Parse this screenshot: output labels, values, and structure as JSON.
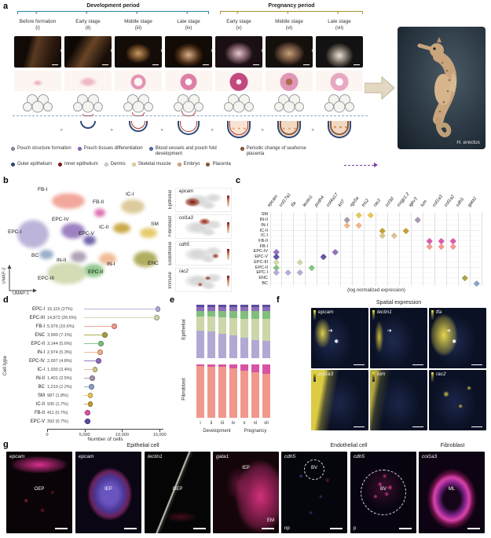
{
  "panel_labels": {
    "a": "a",
    "b": "b",
    "c": "c",
    "d": "d",
    "e": "e",
    "f": "f",
    "g": "g"
  },
  "palette": {
    "EPC-I": "#b3a8d4",
    "E PC": "#999",
    "EPC-II": "#7fbf7b",
    "EPC-III": "#ccd6a9",
    "EPC-IV": "#8d6cb8",
    "EPC-V": "#5c4b9e",
    "FB-I": "#f0988c",
    "FB-II": "#d953a4",
    "IC-I": "#d6c28a",
    "IC-II": "#c29b2d",
    "SM": "#e3c454",
    "IN-I": "#efb086",
    "IN-II": "#a393ab",
    "BC": "#86a0c2",
    "ENC": "#a3a044"
  },
  "panel_a": {
    "development_label": "Development period",
    "pregnancy_label": "Pregnancy period",
    "stages": [
      {
        "name": "Before formation",
        "numeral": "(i)"
      },
      {
        "name": "Early stage",
        "numeral": "(ii)"
      },
      {
        "name": "Middle stage",
        "numeral": "(iii)"
      },
      {
        "name": "Late stage",
        "numeral": "(iv)"
      },
      {
        "name": "Early stage",
        "numeral": "(v)"
      },
      {
        "name": "Middle stage",
        "numeral": "(vi)"
      },
      {
        "name": "Late stage",
        "numeral": "(vii)"
      }
    ],
    "process_legend": [
      {
        "label": "Pouch structure formation",
        "color": "#8a8fa8"
      },
      {
        "label": "Pouch tissues differentiation",
        "color": "#9467bd"
      },
      {
        "label": "Blood vessels and pouch fold development",
        "color": "#4c72b0"
      },
      {
        "label": "Periodic change of seahorse placenta",
        "color": "#8c5a3c"
      }
    ],
    "tissue_legend": [
      {
        "label": "Outer epithelium",
        "color": "#2e4a7a"
      },
      {
        "label": "Inner epithelium",
        "color": "#8b1a1a"
      },
      {
        "label": "Dermis",
        "color": "#d9d9d9"
      },
      {
        "label": "Skeletal muscle",
        "color": "#f0e0a0"
      },
      {
        "label": "Embryo",
        "color": "#e8a87c"
      },
      {
        "label": "Placenta",
        "color": "#8c5a3c"
      }
    ],
    "species": "H. erectus"
  },
  "panel_b": {
    "x_axis": "UMAP-1",
    "y_axis": "UMAP-2",
    "clusters": [
      {
        "name": "FB-I",
        "bx": 58,
        "by": 10,
        "bw": 42,
        "bh": 20,
        "lx": 40,
        "ly": 2
      },
      {
        "name": "FB-II",
        "bx": 112,
        "by": 30,
        "bw": 14,
        "bh": 10,
        "lx": 110,
        "ly": 18
      },
      {
        "name": "IC-I",
        "bx": 146,
        "by": 18,
        "bw": 30,
        "bh": 18,
        "lx": 152,
        "ly": 8
      },
      {
        "name": "IC-II",
        "bx": 136,
        "by": 48,
        "bw": 22,
        "bh": 13,
        "lx": 118,
        "ly": 50
      },
      {
        "name": "SM",
        "bx": 170,
        "by": 54,
        "bw": 22,
        "bh": 13,
        "lx": 184,
        "ly": 46
      },
      {
        "name": "EPC-I",
        "bx": 14,
        "by": 44,
        "bw": 40,
        "bh": 36,
        "lx": 2,
        "ly": 56
      },
      {
        "name": "EPC-IV",
        "bx": 70,
        "by": 48,
        "bw": 30,
        "bh": 20,
        "lx": 58,
        "ly": 40
      },
      {
        "name": "EPC-V",
        "bx": 98,
        "by": 64,
        "bw": 16,
        "bh": 12,
        "lx": 92,
        "ly": 58
      },
      {
        "name": "ENC",
        "bx": 162,
        "by": 84,
        "bw": 30,
        "bh": 20,
        "lx": 180,
        "ly": 96
      },
      {
        "name": "IN-I",
        "bx": 118,
        "by": 86,
        "bw": 22,
        "bh": 15,
        "lx": 128,
        "ly": 97
      },
      {
        "name": "IN-II",
        "bx": 82,
        "by": 84,
        "bw": 20,
        "bh": 14,
        "lx": 64,
        "ly": 92
      },
      {
        "name": "BC",
        "bx": 42,
        "by": 82,
        "bw": 18,
        "bh": 12,
        "lx": 32,
        "ly": 86
      },
      {
        "name": "EPC-II",
        "bx": 98,
        "by": 100,
        "bw": 26,
        "bh": 17,
        "lx": 104,
        "ly": 107
      },
      {
        "name": "EPC-III",
        "bx": 52,
        "by": 98,
        "bw": 50,
        "bh": 28,
        "lx": 40,
        "ly": 115
      }
    ],
    "feature_plots": [
      {
        "gene": "epcam",
        "category": "Epithelial"
      },
      {
        "gene": "col1a3",
        "category": "Fibroblast"
      },
      {
        "gene": "cdh5",
        "category": "Endothelial"
      },
      {
        "gene": "rac2",
        "category": "Immune"
      }
    ]
  },
  "chart_data": [
    {
      "type": "heatmap",
      "panel": "c",
      "title": "(log normalized expression)",
      "genes": [
        "epcam",
        "col17a1",
        "tfa",
        "lectin1",
        "pcdh4",
        "col4a17",
        "krt7",
        "rgs5a",
        "tnc2",
        "rac2",
        "ccl3d",
        "mrgp1.2",
        "igkv3",
        "lum",
        "col1a3",
        "col1a2",
        "cdh5",
        "gata1"
      ],
      "cell_types": [
        "SM",
        "IN-II",
        "IN-I",
        "IC-II",
        "IC-I",
        "FB-II",
        "FB-I",
        "EPC-IV",
        "EPC-V",
        "EPC-III",
        "EPC-II",
        "EPC-I",
        "ENC",
        "BC"
      ],
      "marks": [
        [
          7,
          8,
          9,
          10,
          11
        ],
        [
          11
        ],
        [
          9,
          11
        ],
        [
          10
        ],
        [
          8
        ],
        [
          7
        ],
        [
          1,
          2
        ],
        [
          0,
          2
        ],
        [
          0
        ],
        [
          3,
          4
        ],
        [
          4
        ],
        [
          3
        ],
        [
          1
        ],
        [
          5,
          6
        ],
        [
          5,
          6
        ],
        [
          5,
          6
        ],
        [
          12
        ],
        [
          13
        ]
      ]
    },
    {
      "type": "bar",
      "panel": "d",
      "xlabel": "Number of cells",
      "ylabel": "Cell type",
      "categories": [
        "EPC-I",
        "EPC-III",
        "FB-I",
        "ENC",
        "EPC-II",
        "IN-I",
        "EPC-IV",
        "IC-I",
        "IN-II",
        "BC",
        "SM",
        "IC-II",
        "FB-II",
        "EPC-V"
      ],
      "values": [
        15115,
        14872,
        5976,
        3990,
        3144,
        2974,
        2697,
        1930,
        1401,
        1210,
        987,
        935,
        411,
        392
      ],
      "labels": [
        "15,115 (27%)",
        "14,872 (26.6%)",
        "5,976 (10.6%)",
        "3,990 (7.1%)",
        "3,144 (5.6%)",
        "2,974 (5.3%)",
        "2,697 (4.8%)",
        "1,930 (3.4%)",
        "1,401 (2.5%)",
        "1,210 (2.2%)",
        "987 (1.8%)",
        "935 (1.7%)",
        "411 (0.7%)",
        "392 (0.7%)"
      ],
      "xlim": [
        0,
        15500
      ],
      "xticks": [
        {
          "v": 0,
          "t": "0"
        },
        {
          "v": 5000,
          "t": "5,000"
        },
        {
          "v": 10000,
          "t": "10,000"
        },
        {
          "v": 15000,
          "t": "15,000"
        }
      ]
    },
    {
      "type": "bar",
      "panel": "e",
      "stacked": true,
      "categories": [
        "i",
        "ii",
        "iii",
        "iv",
        "v",
        "vi",
        "vii"
      ],
      "groups": [
        {
          "side_label": "Epithelial",
          "series": [
            {
              "name": "EPC-I",
              "values": [
                52,
                50,
                46,
                42,
                38,
                34,
                33
              ]
            },
            {
              "name": "EPC-III",
              "values": [
                26,
                28,
                30,
                33,
                36,
                40,
                40
              ]
            },
            {
              "name": "EPC-II",
              "values": [
                10,
                10,
                12,
                13,
                14,
                14,
                15
              ]
            },
            {
              "name": "EPC-IV",
              "values": [
                8,
                8,
                8,
                8,
                8,
                8,
                8
              ]
            },
            {
              "name": "EPC-V",
              "values": [
                4,
                4,
                4,
                4,
                4,
                4,
                4
              ]
            }
          ]
        },
        {
          "side_label": "Fibroblast",
          "series": [
            {
              "name": "FB-I",
              "values": [
                97,
                96,
                95,
                93,
                88,
                86,
                82
              ]
            },
            {
              "name": "FB-II",
              "values": [
                3,
                4,
                5,
                7,
                12,
                14,
                18
              ]
            }
          ]
        }
      ],
      "stage_groups": [
        {
          "label": "Development",
          "span": [
            0,
            3
          ]
        },
        {
          "label": "Pregnancy",
          "span": [
            4,
            6
          ]
        }
      ]
    }
  ],
  "panel_f": {
    "title": "Spatial expression",
    "tiles": [
      {
        "gene": "epcam",
        "marks": [
          "arrow",
          "asterisk"
        ]
      },
      {
        "gene": "lectin1",
        "marks": [
          "arrow"
        ]
      },
      {
        "gene": "tfa",
        "marks": [
          "arrow",
          "asterisk"
        ]
      },
      {
        "gene": "col1a3",
        "marks": []
      },
      {
        "gene": "lum",
        "marks": []
      },
      {
        "gene": "rac2",
        "marks": []
      }
    ]
  },
  "panel_g": {
    "headers": [
      "Epithelial cell",
      "Endothelial cell",
      "Fibroblast"
    ],
    "tiles": [
      {
        "gene": "epcam",
        "circle": false,
        "anns": [
          {
            "t": "OEP",
            "pos": "c"
          }
        ]
      },
      {
        "gene": "epcam",
        "circle": false,
        "anns": [
          {
            "t": "IEP",
            "pos": "c"
          }
        ]
      },
      {
        "gene": "lectin1",
        "circle": false,
        "anns": [
          {
            "t": "OEP",
            "pos": "c"
          }
        ]
      },
      {
        "gene": "gata1",
        "circle": false,
        "anns": [
          {
            "t": "IEP",
            "pos": "t"
          },
          {
            "t": "EM",
            "pos": "br"
          }
        ]
      },
      {
        "gene": "cdh5",
        "circle": true,
        "anns": [
          {
            "t": "BV",
            "pos": "t"
          },
          {
            "t": "np",
            "pos": "bl"
          }
        ]
      },
      {
        "gene": "cdh5",
        "circle": true,
        "anns": [
          {
            "t": "BV",
            "pos": "c"
          },
          {
            "t": "p",
            "pos": "bl"
          }
        ]
      },
      {
        "gene": "col1a3",
        "circle": false,
        "anns": [
          {
            "t": "ML",
            "pos": "c"
          }
        ]
      }
    ]
  }
}
